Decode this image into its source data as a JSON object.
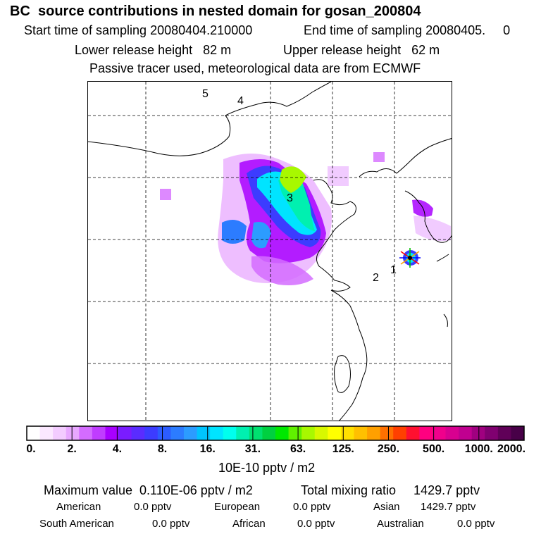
{
  "title": "BC  source contributions in nested domain for gosan_200804",
  "sampling": {
    "start": "Start time of sampling 20080404.210000",
    "end": "End time of sampling 20080405.     0"
  },
  "release": {
    "lower": "Lower release height   82 m",
    "upper": "Upper release height   62 m"
  },
  "note": "Passive tracer used, meteorological data are from ECMWF",
  "map": {
    "region_labels": [
      "5",
      "4",
      "3",
      "2",
      "1"
    ],
    "receptor_marker": "star-marker"
  },
  "colorbar": {
    "ticks": [
      "0.",
      "2.",
      "4.",
      "8.",
      "16.",
      "31.",
      "63.",
      "125.",
      "250.",
      "500.",
      "1000.",
      "2000."
    ],
    "colors": [
      "#ffffff",
      "#fbe8ff",
      "#f3ccff",
      "#e8a8ff",
      "#d46cff",
      "#c03cff",
      "#a800ff",
      "#7a1cff",
      "#5a2cff",
      "#3c3cff",
      "#2c5cff",
      "#2c7cff",
      "#2c9cff",
      "#00c4ff",
      "#00e4ff",
      "#00ffee",
      "#00f0b0",
      "#00e070",
      "#00d040",
      "#00e800",
      "#60f000",
      "#a8f800",
      "#d8f800",
      "#ffff00",
      "#ffe000",
      "#ffc000",
      "#ffa000",
      "#ff7000",
      "#ff4000",
      "#ff1030",
      "#ff0080",
      "#f0008c",
      "#d80090",
      "#c00090",
      "#a00080",
      "#800070",
      "#600058",
      "#480048"
    ],
    "unit": "10E-10 pptv / m2"
  },
  "stats": {
    "max": "Maximum value  0.110E-06 pptv / m2",
    "total": "Total mixing ratio     1429.7 pptv",
    "american": "American",
    "american_val": "0.0 pptv",
    "european": "European",
    "european_val": "0.0 pptv",
    "asian": "Asian",
    "asian_val": "1429.7 pptv",
    "south_american": "South American",
    "south_american_val": "0.0 pptv",
    "african": "African",
    "african_val": "0.0 pptv",
    "australian": "Australian",
    "australian_val": "0.0 pptv"
  }
}
